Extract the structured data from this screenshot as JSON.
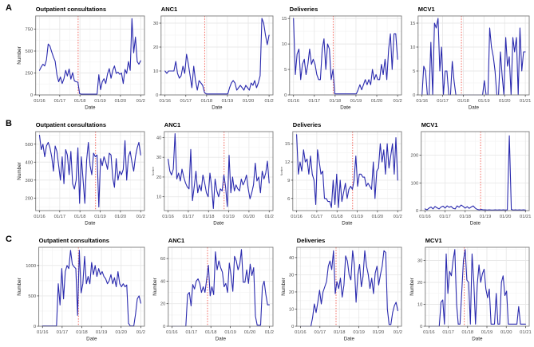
{
  "style": {
    "series_color": "#2a2aae",
    "event_line_color": "#f4746b",
    "grid_major_color": "#e8e8e8",
    "grid_minor_color": "#f4f4f4",
    "panel_border_color": "#7a7a7a",
    "tick_text_color": "#4d4d4d",
    "background": "#ffffff"
  },
  "panels": [
    {
      "label": "A"
    },
    {
      "label": "B"
    },
    {
      "label": "C"
    }
  ],
  "chart_data": [
    {
      "type": "line",
      "panel": "A",
      "title": "Outpatient consultations",
      "ylabel": "Number",
      "ylabel_tiny": false,
      "xlabel": "Date",
      "yticks": [
        0,
        250,
        500,
        750
      ],
      "ylim": [
        0,
        900
      ],
      "xticks": [
        "01/16",
        "01/17",
        "01/18",
        "01/19",
        "01/20",
        "01/2"
      ],
      "event_x_frac": 0.39,
      "values": [
        280,
        320,
        350,
        330,
        400,
        580,
        555,
        490,
        430,
        385,
        230,
        150,
        205,
        130,
        185,
        280,
        215,
        295,
        180,
        255,
        160,
        150,
        145,
        15,
        8,
        8,
        8,
        8,
        8,
        8,
        8,
        8,
        8,
        8,
        230,
        60,
        150,
        185,
        130,
        240,
        300,
        190,
        280,
        330,
        245,
        260,
        235,
        250,
        130,
        290,
        245,
        380,
        280,
        870,
        480,
        660,
        380,
        350,
        390
      ]
    },
    {
      "type": "line",
      "panel": "A",
      "title": "ANC1",
      "ylabel": "",
      "ylabel_tiny": false,
      "xlabel": "Date",
      "yticks": [
        0,
        10,
        20,
        30
      ],
      "ylim": [
        0,
        33
      ],
      "xticks": [
        "01/16",
        "01/17",
        "01/18",
        "01/19",
        "01/20",
        "01/2"
      ],
      "event_x_frac": 0.39,
      "values": [
        10,
        9,
        10,
        10,
        10,
        10,
        14,
        9,
        7,
        8,
        12,
        9,
        17,
        13,
        8,
        3,
        12,
        6,
        2,
        6,
        5,
        4,
        1,
        0.4,
        0.4,
        0.4,
        0.4,
        0.4,
        0.4,
        0.4,
        0.4,
        0.4,
        0.4,
        0.4,
        0.4,
        0.4,
        3,
        5,
        6,
        5,
        2,
        3,
        4,
        3,
        2,
        4,
        3,
        2,
        5,
        4,
        6,
        3,
        5,
        8,
        32,
        30,
        25,
        21,
        25
      ]
    },
    {
      "type": "line",
      "panel": "A",
      "title": "Deliveries",
      "ylabel": "",
      "ylabel_tiny": false,
      "xlabel": "Date",
      "yticks": [
        0,
        5,
        10,
        15
      ],
      "ylim": [
        0,
        15.5
      ],
      "xticks": [
        "01/16",
        "01/17",
        "01/18",
        "01/19",
        "01/20",
        "01/2"
      ],
      "event_x_frac": 0.39,
      "values": [
        15,
        4,
        8,
        9,
        3,
        6,
        7,
        4,
        6,
        9,
        6,
        7,
        6,
        4,
        3,
        3,
        9,
        11,
        5,
        10,
        9,
        3,
        5,
        0.2,
        0.2,
        0.2,
        0.2,
        0.2,
        0.2,
        0.2,
        0.2,
        0.2,
        0.2,
        0.2,
        0.2,
        0.2,
        1,
        2,
        1,
        2,
        3,
        2,
        3,
        2,
        5,
        3,
        4,
        3,
        3,
        6,
        4,
        7,
        3,
        9,
        12,
        5,
        12,
        12,
        7
      ]
    },
    {
      "type": "line",
      "panel": "A",
      "title": "MCV1",
      "ylabel": "",
      "ylabel_tiny": false,
      "xlabel": "Date",
      "yticks": [
        0,
        5,
        10,
        15
      ],
      "ylim": [
        0,
        16.5
      ],
      "xticks": [
        "01/16",
        "01/17",
        "01/18",
        "01/19",
        "01/20",
        "01/21"
      ],
      "event_x_frac": 0.39,
      "values": [
        0,
        6,
        5,
        0,
        0,
        11,
        0,
        15,
        14,
        16,
        5,
        10,
        0,
        5,
        5,
        0,
        0,
        7,
        3,
        0,
        0,
        0,
        0,
        0,
        0,
        0,
        0,
        0,
        0,
        0,
        0,
        0,
        0,
        0,
        0,
        3,
        0,
        0,
        14,
        10,
        8,
        5,
        0,
        0,
        9,
        4,
        0,
        12,
        6,
        8,
        0,
        12,
        9,
        12,
        0,
        14,
        5,
        9,
        9
      ]
    },
    {
      "type": "line",
      "panel": "B",
      "title": "Outpatient consultations",
      "ylabel": "Number",
      "ylabel_tiny": false,
      "xlabel": "Date",
      "yticks": [
        200,
        300,
        400,
        500
      ],
      "ylim": [
        130,
        570
      ],
      "xticks": [
        "01/16",
        "01/17",
        "01/18",
        "01/19",
        "01/20",
        "01/2"
      ],
      "event_x_frac": 0.55,
      "values": [
        550,
        470,
        500,
        430,
        490,
        510,
        480,
        430,
        350,
        490,
        460,
        380,
        300,
        430,
        280,
        470,
        440,
        330,
        460,
        280,
        250,
        300,
        480,
        170,
        430,
        300,
        170,
        410,
        510,
        380,
        330,
        450,
        430,
        440,
        150,
        420,
        380,
        430,
        400,
        360,
        450,
        440,
        310,
        260,
        420,
        300,
        350,
        330,
        360,
        520,
        300,
        430,
        460,
        400,
        350,
        430,
        480,
        510,
        440
      ]
    },
    {
      "type": "line",
      "panel": "B",
      "title": "ANC1",
      "ylabel": "Number",
      "ylabel_tiny": true,
      "xlabel": "Date",
      "yticks": [
        10,
        20,
        30,
        40
      ],
      "ylim": [
        3,
        43
      ],
      "xticks": [
        "01/16",
        "01/17",
        "01/18",
        "01/19",
        "01/20",
        "01/2"
      ],
      "event_x_frac": 0.55,
      "values": [
        29,
        23,
        21,
        24,
        42,
        19,
        22,
        18,
        24,
        20,
        17,
        15,
        14,
        34,
        8,
        15,
        23,
        12,
        16,
        13,
        21,
        17,
        12,
        10,
        22,
        15,
        4,
        19,
        13,
        10,
        14,
        13,
        21,
        15,
        5,
        31,
        12,
        20,
        13,
        16,
        14,
        13,
        19,
        16,
        18,
        21,
        14,
        9,
        12,
        16,
        27,
        18,
        20,
        12,
        23,
        19,
        22,
        28,
        17
      ]
    },
    {
      "type": "line",
      "panel": "B",
      "title": "Deliveries",
      "ylabel": "Number",
      "ylabel_tiny": true,
      "xlabel": "Date",
      "yticks": [
        6,
        9,
        12,
        15
      ],
      "ylim": [
        4,
        17
      ],
      "xticks": [
        "01/16",
        "01/17",
        "01/18",
        "01/19",
        "01/20",
        "01/2"
      ],
      "event_x_frac": 0.55,
      "values": [
        16.5,
        10,
        12,
        10.5,
        14,
        12,
        12.5,
        10,
        13,
        10,
        9,
        5,
        14,
        12,
        10,
        10.5,
        6,
        6,
        5.5,
        5.5,
        4.5,
        9,
        5,
        10,
        4.5,
        9,
        5.5,
        7,
        8.5,
        6,
        7.5,
        8,
        7.5,
        9,
        13,
        8,
        10,
        10,
        9.5,
        9.5,
        8,
        8.5,
        8,
        7.5,
        12,
        6,
        10.5,
        11,
        15,
        12,
        14,
        10,
        15,
        11,
        13,
        15,
        10,
        16,
        9
      ]
    },
    {
      "type": "line",
      "panel": "B",
      "title": "MCV1",
      "ylabel": "",
      "ylabel_tiny": false,
      "xlabel": "Date",
      "yticks": [
        0,
        100,
        200
      ],
      "ylim": [
        0,
        285
      ],
      "xticks": [
        "01/16",
        "01/17",
        "01/18",
        "01/19",
        "01/20",
        "01/21"
      ],
      "event_x_frac": 0.55,
      "values": [
        6,
        3,
        9,
        13,
        6,
        15,
        10,
        6,
        13,
        16,
        9,
        17,
        12,
        15,
        8,
        6,
        17,
        12,
        20,
        15,
        9,
        14,
        8,
        13,
        17,
        9,
        4,
        3,
        4,
        3,
        3,
        2,
        3,
        2,
        2,
        3,
        2,
        3,
        2,
        3,
        2,
        3,
        270,
        4,
        2,
        3,
        2,
        3,
        2,
        3,
        2
      ]
    },
    {
      "type": "line",
      "panel": "C",
      "title": "Outpatient consultations",
      "ylabel": "Number",
      "ylabel_tiny": false,
      "xlabel": "Date",
      "yticks": [
        0,
        500,
        1000
      ],
      "ylim": [
        0,
        1300
      ],
      "xticks": [
        "01/16",
        "01/17",
        "01/18",
        "01/19",
        "01/20",
        "01/2"
      ],
      "event_x_frac": 0.375,
      "values": [
        5,
        5,
        5,
        5,
        5,
        5,
        5,
        5,
        5,
        700,
        350,
        950,
        450,
        900,
        1000,
        950,
        1250,
        1020,
        980,
        950,
        180,
        1250,
        550,
        700,
        1150,
        700,
        820,
        700,
        1050,
        850,
        1000,
        820,
        950,
        850,
        900,
        820,
        780,
        700,
        750,
        850,
        700,
        800,
        650,
        900,
        700,
        650,
        700,
        650,
        680,
        50,
        5,
        5,
        5,
        200,
        450,
        500,
        380
      ]
    },
    {
      "type": "line",
      "panel": "C",
      "title": "ANC1",
      "ylabel": "Number",
      "ylabel_tiny": false,
      "xlabel": "Date",
      "yticks": [
        0,
        20,
        40,
        60
      ],
      "ylim": [
        0,
        70
      ],
      "xticks": [
        "01/16",
        "01/17",
        "01/18",
        "01/19",
        "01/20",
        "01/2"
      ],
      "event_x_frac": 0.375,
      "values": [
        0,
        0,
        0,
        0,
        0,
        0,
        0,
        0,
        0,
        28,
        30,
        18,
        37,
        33,
        40,
        42,
        38,
        30,
        35,
        30,
        42,
        54,
        27,
        35,
        28,
        66,
        50,
        58,
        52,
        48,
        35,
        38,
        30,
        56,
        45,
        31,
        62,
        58,
        50,
        55,
        68,
        39,
        39,
        50,
        38,
        55,
        45,
        52,
        9,
        1,
        1,
        1,
        35,
        40,
        28,
        19,
        19
      ]
    },
    {
      "type": "line",
      "panel": "C",
      "title": "Deliveries",
      "ylabel": "Number",
      "ylabel_tiny": false,
      "xlabel": "Date",
      "yticks": [
        0,
        10,
        20,
        30,
        40
      ],
      "ylim": [
        0,
        46
      ],
      "xticks": [
        "01/16",
        "01/17",
        "01/18",
        "01/19",
        "01/20",
        "01/2"
      ],
      "event_x_frac": 0.375,
      "values": [
        0,
        0,
        0,
        0,
        0,
        0,
        0,
        5,
        13,
        8,
        14,
        21,
        13,
        20,
        23,
        26,
        35,
        38,
        33,
        44,
        19,
        26,
        22,
        28,
        17,
        24,
        41,
        38,
        30,
        27,
        44,
        36,
        14,
        30,
        36,
        23,
        29,
        44,
        35,
        30,
        22,
        28,
        19,
        31,
        35,
        24,
        30,
        35,
        44,
        43,
        10,
        1,
        1,
        8,
        12,
        14,
        9
      ]
    },
    {
      "type": "line",
      "panel": "C",
      "title": "MCV1",
      "ylabel": "Number",
      "ylabel_tiny": false,
      "xlabel": "Date",
      "yticks": [
        0,
        10,
        20,
        30
      ],
      "ylim": [
        0,
        36
      ],
      "xticks": [
        "01/16",
        "01/17",
        "01/18",
        "01/19",
        "01/20",
        "01/21"
      ],
      "event_x_frac": 0.375,
      "values": [
        0,
        0,
        0,
        0,
        0,
        0,
        0,
        11,
        12,
        1,
        33,
        15,
        25,
        23,
        30,
        35,
        10,
        1,
        1,
        15,
        30,
        35,
        21,
        20,
        1,
        33,
        20,
        1,
        19,
        28,
        20,
        24,
        26,
        17,
        13,
        17,
        1,
        1,
        1,
        15,
        1,
        1,
        20,
        23,
        14,
        16,
        1,
        1,
        1,
        1,
        1,
        1,
        9,
        1,
        1,
        1,
        1
      ]
    }
  ]
}
